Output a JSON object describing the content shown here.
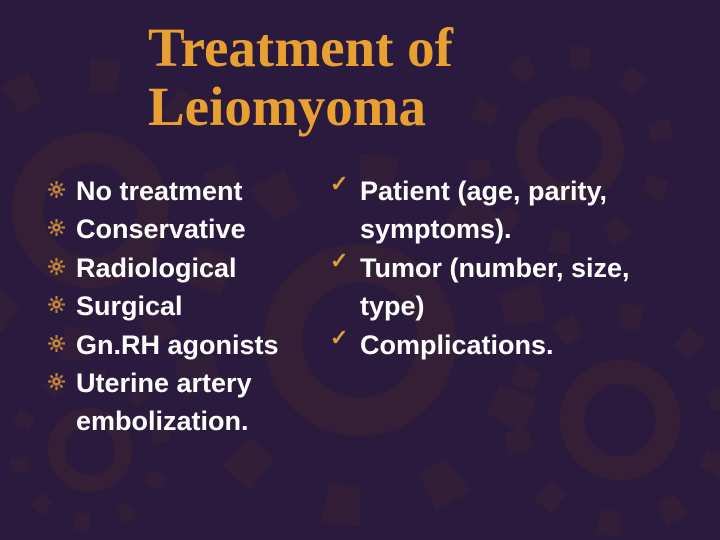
{
  "title_line1": "Treatment of",
  "title_line2": "Leiomyoma",
  "colors": {
    "background": "#2a1a3e",
    "title": "#e8a030",
    "body_text": "#ffffff",
    "check_bullet": "#d8a038",
    "gear_bullet": "#c0843a"
  },
  "typography": {
    "title_fontsize_pt": 42,
    "title_font_family": "Times New Roman",
    "body_fontsize_pt": 20,
    "body_weight": "bold"
  },
  "left_items": [
    {
      "text": "No treatment"
    },
    {
      "text": "Conservative"
    },
    {
      "text": "Radiological"
    },
    {
      "text": "Surgical"
    },
    {
      "text": "Gn.RH agonists"
    },
    {
      "text": "Uterine artery"
    },
    {
      "text": "embolization.",
      "continuation": true
    }
  ],
  "right_items": [
    {
      "text": "Patient (age, parity,"
    },
    {
      "text": "symptoms).",
      "continuation": true
    },
    {
      "text": "Tumor (number, size,"
    },
    {
      "text": "type)",
      "continuation": true
    },
    {
      "text": "Complications."
    }
  ]
}
